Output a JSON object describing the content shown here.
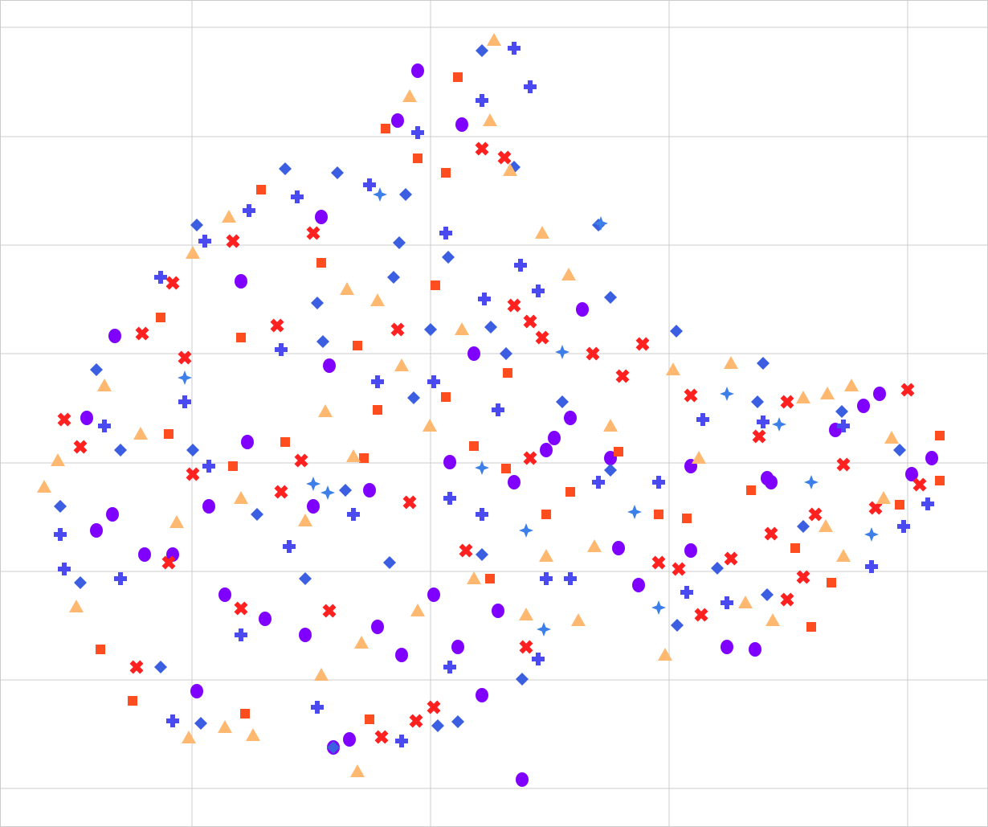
{
  "chart_data": {
    "type": "scatter",
    "xlim": [
      0,
      1230
    ],
    "ylim": [
      0,
      1029
    ],
    "xticks": [
      239,
      536,
      833,
      1130
    ],
    "yticks": [
      48,
      183,
      318,
      453,
      589,
      724,
      859,
      995
    ],
    "grid": true,
    "series": [
      {
        "color": "#7f00ff",
        "marker": "circle",
        "x": [
          520,
          650,
          308,
          410,
          590,
          725,
          680,
          760,
          860,
          960,
          1075,
          1160,
          1095,
          905,
          940,
          795,
          770,
          860,
          415,
          435,
          500,
          570,
          620,
          540,
          470,
          380,
          330,
          280,
          215,
          180,
          140,
          120,
          260,
          390,
          460,
          560,
          640,
          710,
          300,
          400,
          495,
          575,
          143,
          108,
          245,
          600,
          1040,
          1135,
          955,
          690
        ],
        "values": [
          941,
          59,
          479,
          574,
          589,
          644,
          469,
          459,
          449,
          429,
          524,
          459,
          539,
          224,
          221,
          301,
          347,
          344,
          99,
          109,
          214,
          224,
          269,
          289,
          249,
          239,
          259,
          289,
          339,
          339,
          389,
          369,
          399,
          399,
          419,
          454,
          429,
          509,
          679,
          759,
          879,
          874,
          611,
          509,
          169,
          164,
          494,
          439,
          434,
          484
        ]
      },
      {
        "color": "#4a4af0",
        "marker": "plus",
        "x": [
          640,
          660,
          600,
          520,
          460,
          370,
          310,
          255,
          200,
          648,
          670,
          603,
          555,
          540,
          470,
          350,
          260,
          230,
          130,
          75,
          80,
          215,
          500,
          440,
          560,
          680,
          710,
          855,
          905,
          1085,
          1155,
          1125,
          1050,
          950,
          875,
          820,
          745,
          620,
          600,
          360,
          300,
          150,
          395,
          560,
          670
        ],
        "values": [
          969,
          921,
          904,
          864,
          799,
          784,
          767,
          729,
          684,
          699,
          667,
          657,
          739,
          554,
          554,
          594,
          449,
          529,
          499,
          364,
          321,
          132,
          107,
          389,
          409,
          309,
          309,
          292,
          279,
          324,
          402,
          374,
          499,
          504,
          507,
          429,
          429,
          519,
          389,
          349,
          239,
          309,
          149,
          199,
          209
        ]
      },
      {
        "color": "#3b5fe0",
        "marker": "diamond",
        "x": [
          600,
          505,
          497,
          490,
          558,
          395,
          402,
          536,
          611,
          640,
          842,
          950,
          943,
          1048,
          1120,
          1000,
          955,
          893,
          843,
          760,
          700,
          630,
          515,
          430,
          320,
          240,
          120,
          75,
          100,
          250,
          415,
          545,
          570,
          650,
          485,
          380,
          200,
          150,
          245,
          355,
          420,
          745,
          760,
          600
        ],
        "values": [
          966,
          787,
          727,
          684,
          709,
          652,
          604,
          619,
          622,
          821,
          617,
          577,
          529,
          517,
          469,
          374,
          289,
          322,
          251,
          444,
          529,
          589,
          534,
          419,
          389,
          469,
          569,
          399,
          304,
          129,
          99,
          126,
          131,
          184,
          329,
          309,
          199,
          469,
          749,
          819,
          814,
          749,
          659,
          339
        ]
      },
      {
        "color": "#ff2020",
        "marker": "x",
        "x": [
          628,
          600,
          640,
          660,
          675,
          495,
          738,
          775,
          800,
          860,
          980,
          1130,
          945,
          1050,
          1145,
          1090,
          1015,
          1000,
          980,
          873,
          910,
          845,
          820,
          960,
          660,
          580,
          510,
          375,
          350,
          230,
          177,
          80,
          100,
          210,
          240,
          300,
          410,
          475,
          518,
          540,
          655,
          170,
          390,
          345,
          215,
          290
        ],
        "values": [
          833,
          844,
          649,
          629,
          609,
          619,
          589,
          561,
          601,
          537,
          529,
          544,
          486,
          451,
          426,
          397,
          389,
          311,
          283,
          264,
          334,
          321,
          329,
          365,
          459,
          344,
          404,
          456,
          417,
          584,
          614,
          507,
          473,
          329,
          439,
          272,
          269,
          112,
          132,
          149,
          224,
          199,
          739,
          624,
          677,
          729
        ]
      },
      {
        "color": "#ff4d1f",
        "marker": "square",
        "x": [
          570,
          555,
          520,
          480,
          325,
          400,
          542,
          445,
          555,
          632,
          630,
          770,
          855,
          1010,
          1035,
          1120,
          1170,
          1170,
          990,
          935,
          820,
          710,
          680,
          590,
          470,
          355,
          290,
          200,
          125,
          165,
          305,
          460,
          610,
          300,
          453,
          210
        ],
        "values": [
          933,
          814,
          832,
          869,
          793,
          702,
          674,
          599,
          535,
          565,
          446,
          467,
          384,
          249,
          304,
          401,
          431,
          487,
          347,
          419,
          389,
          417,
          389,
          474,
          519,
          479,
          449,
          634,
          221,
          157,
          141,
          134,
          309,
          609,
          459,
          489
        ]
      },
      {
        "color": "#ffb870",
        "marker": "triangle",
        "x": [
          615,
          675,
          708,
          432,
          470,
          575,
          500,
          405,
          838,
          910,
          1030,
          1060,
          1110,
          1100,
          1050,
          1028,
          962,
          928,
          828,
          720,
          680,
          655,
          590,
          535,
          440,
          380,
          300,
          220,
          55,
          72,
          95,
          235,
          280,
          315,
          445,
          400,
          450,
          520,
          760,
          740,
          870,
          240,
          285,
          510,
          610,
          635,
          130,
          175,
          1000
        ],
        "values": [
          979,
          739,
          687,
          669,
          655,
          619,
          574,
          517,
          569,
          577,
          539,
          549,
          484,
          409,
          337,
          374,
          257,
          279,
          214,
          257,
          337,
          264,
          309,
          499,
          461,
          381,
          409,
          379,
          423,
          456,
          274,
          111,
          124,
          114,
          69,
          189,
          229,
          269,
          499,
          349,
          459,
          714,
          759,
          909,
          879,
          817,
          549,
          489,
          534
        ]
      },
      {
        "color": "#3d7fe8",
        "marker": "star",
        "x": [
          473,
          748,
          905,
          408,
          655,
          820,
          1085,
          1010,
          970,
          790,
          600,
          390,
          677,
          230,
          700
        ],
        "values": [
          787,
          751,
          539,
          416,
          369,
          273,
          364,
          429,
          501,
          392,
          447,
          427,
          246,
          559,
          591
        ]
      }
    ]
  }
}
